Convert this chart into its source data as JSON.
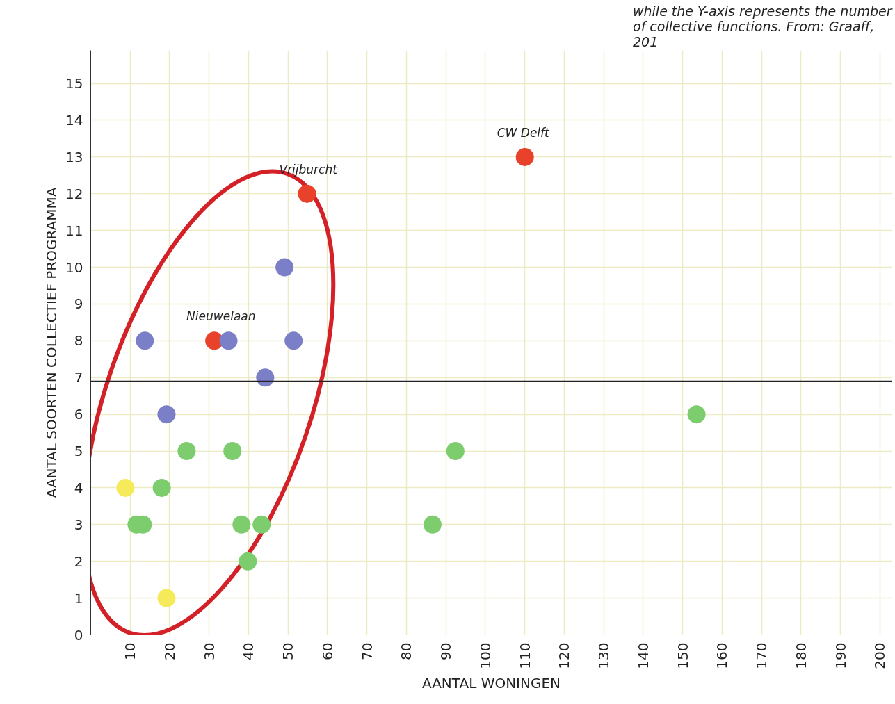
{
  "chart_data": {
    "type": "scatter",
    "xlabel": "AANTAL WONINGEN",
    "ylabel": "AANTAL SOORTEN COLLECTIEF PROGRAMMA",
    "xlim": [
      0,
      203
    ],
    "ylim": [
      0,
      15.9
    ],
    "xticks": [
      10,
      20,
      30,
      40,
      50,
      60,
      70,
      80,
      90,
      100,
      110,
      120,
      130,
      140,
      150,
      160,
      170,
      180,
      190,
      200
    ],
    "yticks": [
      0,
      1,
      2,
      3,
      4,
      5,
      6,
      7,
      8,
      9,
      10,
      11,
      12,
      13,
      14,
      15
    ],
    "grid": true,
    "marker": "circle",
    "series": [
      {
        "color": "#e8432a",
        "x": [
          110,
          54.8,
          31.3
        ],
        "values": [
          13,
          12,
          8
        ]
      },
      {
        "color": "#7b7fc8",
        "x": [
          13.7,
          34.9,
          51.4,
          49.1,
          44.2,
          19.2
        ],
        "values": [
          8,
          8,
          8,
          10,
          7,
          6
        ]
      },
      {
        "color": "#7dcc6e",
        "x": [
          24.3,
          35.9,
          92.4,
          153.5,
          18,
          11.6,
          13.2,
          38.2,
          43.3,
          86.6,
          39.8
        ],
        "values": [
          5,
          5,
          5,
          6,
          4,
          3,
          3,
          3,
          3,
          3,
          2
        ]
      },
      {
        "color": "#f5ea5a",
        "x": [
          8.8,
          19.2
        ],
        "values": [
          4,
          1
        ]
      }
    ],
    "ref_lines": [
      {
        "axis": "y",
        "value": 6.9,
        "color": "#222222"
      }
    ],
    "annotations": [
      {
        "text": "CW Delft",
        "x": 110,
        "y": 13
      },
      {
        "text": "Vrijburcht",
        "x": 54.8,
        "y": 12
      },
      {
        "text": "Nieuwelaan",
        "x": 31.3,
        "y": 8
      },
      "while the Y-axis represents the number of collective functions. From: Graaff, 201"
    ]
  }
}
